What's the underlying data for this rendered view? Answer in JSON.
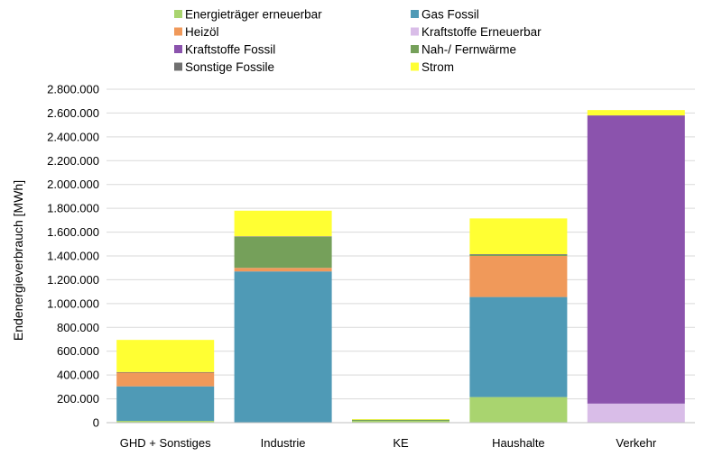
{
  "chart_data": {
    "type": "bar",
    "stacked": true,
    "ylabel": "Endenergieverbrauch [MWh]",
    "xlabel": "",
    "ylim": [
      0,
      2800000
    ],
    "ytick_step": 200000,
    "ytick_labels": [
      "0",
      "200.000",
      "400.000",
      "600.000",
      "800.000",
      "1.000.000",
      "1.200.000",
      "1.400.000",
      "1.600.000",
      "1.800.000",
      "2.000.000",
      "2.200.000",
      "2.400.000",
      "2.600.000",
      "2.800.000"
    ],
    "grid": true,
    "legend_position": "top",
    "categories": [
      "GHD + Sonstiges",
      "Industrie",
      "KE",
      "Haushalte",
      "Verkehr"
    ],
    "series": [
      {
        "name": "Energieträger erneuerbar",
        "color": "#a9d46f",
        "values": [
          15000,
          0,
          15000,
          215000,
          0
        ]
      },
      {
        "name": "Kraftstoffe Erneuerbar",
        "color": "#d9bde8",
        "values": [
          0,
          0,
          0,
          0,
          160000
        ]
      },
      {
        "name": "Gas Fossil",
        "color": "#4f9ab6",
        "values": [
          290000,
          1270000,
          0,
          840000,
          0
        ]
      },
      {
        "name": "Heizöl",
        "color": "#f0995a",
        "values": [
          115000,
          30000,
          0,
          345000,
          0
        ]
      },
      {
        "name": "Kraftstoffe Fossil",
        "color": "#8b53ad",
        "values": [
          0,
          0,
          0,
          0,
          2420000
        ]
      },
      {
        "name": "Nah-/ Fernwärme",
        "color": "#75a05a",
        "values": [
          0,
          260000,
          10000,
          10000,
          0
        ]
      },
      {
        "name": "Sonstige Fossile",
        "color": "#707070",
        "values": [
          5000,
          5000,
          0,
          5000,
          0
        ]
      },
      {
        "name": "Strom",
        "color": "#ffff33",
        "values": [
          270000,
          215000,
          5000,
          300000,
          45000
        ]
      }
    ],
    "legend_order": [
      "Energieträger erneuerbar",
      "Gas Fossil",
      "Heizöl",
      "Kraftstoffe Erneuerbar",
      "Kraftstoffe Fossil",
      "Nah-/ Fernwärme",
      "Sonstige Fossile",
      "Strom"
    ]
  }
}
